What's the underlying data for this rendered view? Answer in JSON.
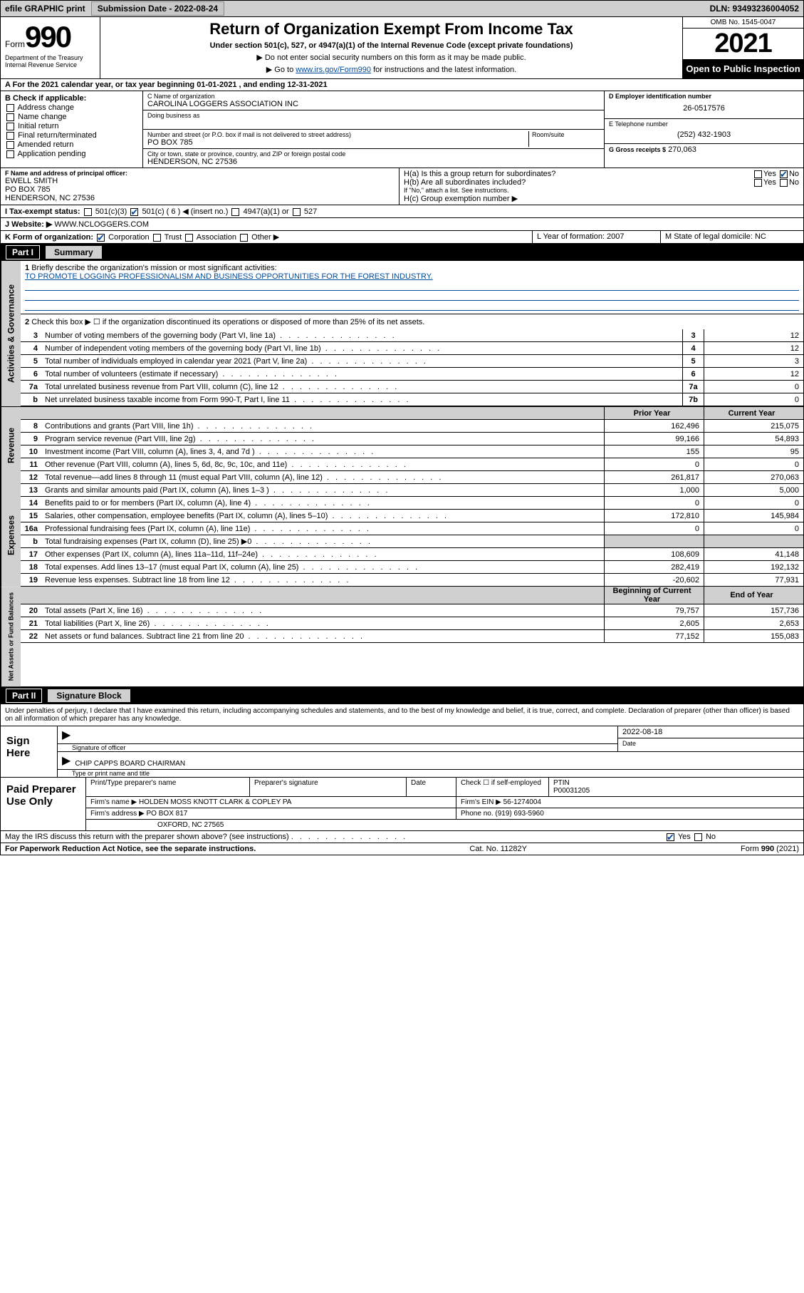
{
  "topbar": {
    "efile": "efile GRAPHIC print",
    "submission_label": "Submission Date - 2022-08-24",
    "dln": "DLN: 93493236004052"
  },
  "header": {
    "form_word": "Form",
    "form_num": "990",
    "title": "Return of Organization Exempt From Income Tax",
    "subtitle": "Under section 501(c), 527, or 4947(a)(1) of the Internal Revenue Code (except private foundations)",
    "note1": "▶ Do not enter social security numbers on this form as it may be made public.",
    "note2_pre": "▶ Go to ",
    "note2_link": "www.irs.gov/Form990",
    "note2_post": " for instructions and the latest information.",
    "omb": "OMB No. 1545-0047",
    "year": "2021",
    "otp": "Open to Public Inspection",
    "dept": "Department of the Treasury Internal Revenue Service"
  },
  "row_a": "A For the 2021 calendar year, or tax year beginning 01-01-2021   , and ending 12-31-2021",
  "col_b": {
    "header": "B Check if applicable:",
    "items": [
      "Address change",
      "Name change",
      "Initial return",
      "Final return/terminated",
      "Amended return",
      "Application pending"
    ]
  },
  "col_c": {
    "name_label": "C Name of organization",
    "name": "CAROLINA LOGGERS ASSOCIATION INC",
    "dba_label": "Doing business as",
    "street_label": "Number and street (or P.O. box if mail is not delivered to street address)",
    "room_label": "Room/suite",
    "street": "PO BOX 785",
    "city_label": "City or town, state or province, country, and ZIP or foreign postal code",
    "city": "HENDERSON, NC  27536"
  },
  "col_d": {
    "ein_label": "D Employer identification number",
    "ein": "26-0517576",
    "phone_label": "E Telephone number",
    "phone": "(252) 432-1903",
    "gross_label": "G Gross receipts $",
    "gross": "270,063"
  },
  "row_f": {
    "label": "F Name and address of principal officer:",
    "name": "EWELL SMITH",
    "addr1": "PO BOX 785",
    "addr2": "HENDERSON, NC  27536"
  },
  "row_h": {
    "ha": "H(a)  Is this a group return for subordinates?",
    "hb": "H(b)  Are all subordinates included?",
    "hb_note": "If \"No,\" attach a list. See instructions.",
    "hc": "H(c)  Group exemption number ▶"
  },
  "row_i": {
    "label": "I   Tax-exempt status:",
    "o1": "501(c)(3)",
    "o2": "501(c) ( 6 ) ◀ (insert no.)",
    "o3": "4947(a)(1) or",
    "o4": "527"
  },
  "row_j": {
    "label": "J   Website: ▶",
    "value": "WWW.NCLOGGERS.COM"
  },
  "row_k": {
    "label": "K Form of organization:",
    "o1": "Corporation",
    "o2": "Trust",
    "o3": "Association",
    "o4": "Other ▶"
  },
  "row_l": {
    "label": "L Year of formation: 2007"
  },
  "row_m": {
    "label": "M State of legal domicile: NC"
  },
  "part1": {
    "part": "Part I",
    "title": "Summary"
  },
  "summary": {
    "q1": "Briefly describe the organization's mission or most significant activities:",
    "mission": "TO PROMOTE LOGGING PROFESSIONALISM AND BUSINESS OPPORTUNITIES FOR THE FOREST INDUSTRY.",
    "q2": "Check this box ▶ ☐  if the organization discontinued its operations or disposed of more than 25% of its net assets.",
    "lines": [
      {
        "n": "3",
        "d": "Number of voting members of the governing body (Part VI, line 1a)",
        "box": "3",
        "v": "12"
      },
      {
        "n": "4",
        "d": "Number of independent voting members of the governing body (Part VI, line 1b)",
        "box": "4",
        "v": "12"
      },
      {
        "n": "5",
        "d": "Total number of individuals employed in calendar year 2021 (Part V, line 2a)",
        "box": "5",
        "v": "3"
      },
      {
        "n": "6",
        "d": "Total number of volunteers (estimate if necessary)",
        "box": "6",
        "v": "12"
      },
      {
        "n": "7a",
        "d": "Total unrelated business revenue from Part VIII, column (C), line 12",
        "box": "7a",
        "v": "0"
      },
      {
        "n": "b",
        "d": "Net unrelated business taxable income from Form 990-T, Part I, line 11",
        "box": "7b",
        "v": "0"
      }
    ]
  },
  "revenue": {
    "hdr_prior": "Prior Year",
    "hdr_curr": "Current Year",
    "lines": [
      {
        "n": "8",
        "d": "Contributions and grants (Part VIII, line 1h)",
        "p": "162,496",
        "c": "215,075"
      },
      {
        "n": "9",
        "d": "Program service revenue (Part VIII, line 2g)",
        "p": "99,166",
        "c": "54,893"
      },
      {
        "n": "10",
        "d": "Investment income (Part VIII, column (A), lines 3, 4, and 7d )",
        "p": "155",
        "c": "95"
      },
      {
        "n": "11",
        "d": "Other revenue (Part VIII, column (A), lines 5, 6d, 8c, 9c, 10c, and 11e)",
        "p": "0",
        "c": "0"
      },
      {
        "n": "12",
        "d": "Total revenue—add lines 8 through 11 (must equal Part VIII, column (A), line 12)",
        "p": "261,817",
        "c": "270,063"
      }
    ]
  },
  "expenses": {
    "lines": [
      {
        "n": "13",
        "d": "Grants and similar amounts paid (Part IX, column (A), lines 1–3 )",
        "p": "1,000",
        "c": "5,000"
      },
      {
        "n": "14",
        "d": "Benefits paid to or for members (Part IX, column (A), line 4)",
        "p": "0",
        "c": "0"
      },
      {
        "n": "15",
        "d": "Salaries, other compensation, employee benefits (Part IX, column (A), lines 5–10)",
        "p": "172,810",
        "c": "145,984"
      },
      {
        "n": "16a",
        "d": "Professional fundraising fees (Part IX, column (A), line 11e)",
        "p": "0",
        "c": "0"
      },
      {
        "n": "b",
        "d": "Total fundraising expenses (Part IX, column (D), line 25) ▶0",
        "p": "",
        "c": "",
        "grey": true
      },
      {
        "n": "17",
        "d": "Other expenses (Part IX, column (A), lines 11a–11d, 11f–24e)",
        "p": "108,609",
        "c": "41,148"
      },
      {
        "n": "18",
        "d": "Total expenses. Add lines 13–17 (must equal Part IX, column (A), line 25)",
        "p": "282,419",
        "c": "192,132"
      },
      {
        "n": "19",
        "d": "Revenue less expenses. Subtract line 18 from line 12",
        "p": "-20,602",
        "c": "77,931"
      }
    ]
  },
  "netassets": {
    "hdr_beg": "Beginning of Current Year",
    "hdr_end": "End of Year",
    "lines": [
      {
        "n": "20",
        "d": "Total assets (Part X, line 16)",
        "p": "79,757",
        "c": "157,736"
      },
      {
        "n": "21",
        "d": "Total liabilities (Part X, line 26)",
        "p": "2,605",
        "c": "2,653"
      },
      {
        "n": "22",
        "d": "Net assets or fund balances. Subtract line 21 from line 20",
        "p": "77,152",
        "c": "155,083"
      }
    ]
  },
  "part2": {
    "part": "Part II",
    "title": "Signature Block"
  },
  "sig": {
    "penalty": "Under penalties of perjury, I declare that I have examined this return, including accompanying schedules and statements, and to the best of my knowledge and belief, it is true, correct, and complete. Declaration of preparer (other than officer) is based on all information of which preparer has any knowledge.",
    "sign_here": "Sign Here",
    "sig_officer": "Signature of officer",
    "date_label": "Date",
    "date": "2022-08-18",
    "name_title": "CHIP CAPPS BOARD CHAIRMAN",
    "type_label": "Type or print name and title"
  },
  "prep": {
    "title": "Paid Preparer Use Only",
    "h1": "Print/Type preparer's name",
    "h2": "Preparer's signature",
    "h3": "Date",
    "h4": "Check ☐ if self-employed",
    "h5_label": "PTIN",
    "h5": "P00031205",
    "firm_label": "Firm's name    ▶",
    "firm": "HOLDEN MOSS KNOTT CLARK & COPLEY PA",
    "ein_label": "Firm's EIN ▶",
    "ein": "56-1274004",
    "addr_label": "Firm's address ▶",
    "addr1": "PO BOX 817",
    "addr2": "OXFORD, NC  27565",
    "phone_label": "Phone no.",
    "phone": "(919) 693-5960"
  },
  "may_discuss": "May the IRS discuss this return with the preparer shown above? (see instructions)",
  "footer": {
    "left": "For Paperwork Reduction Act Notice, see the separate instructions.",
    "mid": "Cat. No. 11282Y",
    "right": "Form 990 (2021)"
  },
  "yn": {
    "yes": "Yes",
    "no": "No"
  }
}
